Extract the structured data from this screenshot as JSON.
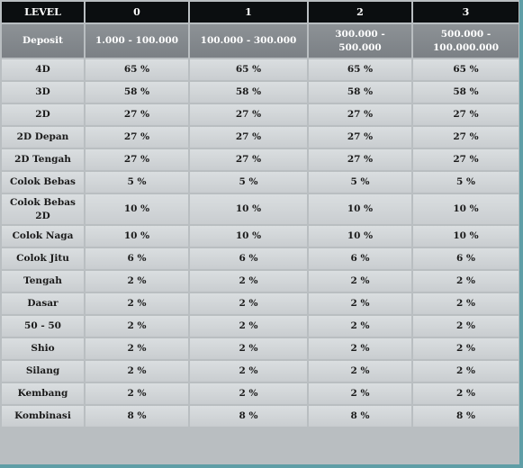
{
  "header": {
    "level_label": "LEVEL",
    "levels": [
      "0",
      "1",
      "2",
      "3"
    ],
    "deposit_label": "Deposit",
    "deposits": [
      "1.000 - 100.000",
      "100.000 - 300.000",
      "300.000 - 500.000",
      "500.000 - 100.000.000"
    ]
  },
  "rows": [
    {
      "type": "4D",
      "values": [
        "65 %",
        "65 %",
        "65 %",
        "65 %"
      ]
    },
    {
      "type": "3D",
      "values": [
        "58 %",
        "58 %",
        "58 %",
        "58 %"
      ]
    },
    {
      "type": "2D",
      "values": [
        "27 %",
        "27 %",
        "27 %",
        "27 %"
      ]
    },
    {
      "type": "2D Depan",
      "values": [
        "27 %",
        "27 %",
        "27 %",
        "27 %"
      ]
    },
    {
      "type": "2D Tengah",
      "values": [
        "27 %",
        "27 %",
        "27 %",
        "27 %"
      ]
    },
    {
      "type": "Colok Bebas",
      "values": [
        "5 %",
        "5 %",
        "5 %",
        "5 %"
      ]
    },
    {
      "type": "Colok Bebas 2D",
      "values": [
        "10 %",
        "10 %",
        "10 %",
        "10 %"
      ]
    },
    {
      "type": "Colok Naga",
      "values": [
        "10 %",
        "10 %",
        "10 %",
        "10 %"
      ]
    },
    {
      "type": "Colok Jitu",
      "values": [
        "6 %",
        "6 %",
        "6 %",
        "6 %"
      ]
    },
    {
      "type": "Tengah",
      "values": [
        "2 %",
        "2 %",
        "2 %",
        "2 %"
      ]
    },
    {
      "type": "Dasar",
      "values": [
        "2 %",
        "2 %",
        "2 %",
        "2 %"
      ]
    },
    {
      "type": "50 - 50",
      "values": [
        "2 %",
        "2 %",
        "2 %",
        "2 %"
      ]
    },
    {
      "type": "Shio",
      "values": [
        "2 %",
        "2 %",
        "2 %",
        "2 %"
      ]
    },
    {
      "type": "Silang",
      "values": [
        "2 %",
        "2 %",
        "2 %",
        "2 %"
      ]
    },
    {
      "type": "Kembang",
      "values": [
        "2 %",
        "2 %",
        "2 %",
        "2 %"
      ]
    },
    {
      "type": "Kombinasi",
      "values": [
        "8 %",
        "8 %",
        "8 %",
        "8 %"
      ]
    }
  ]
}
